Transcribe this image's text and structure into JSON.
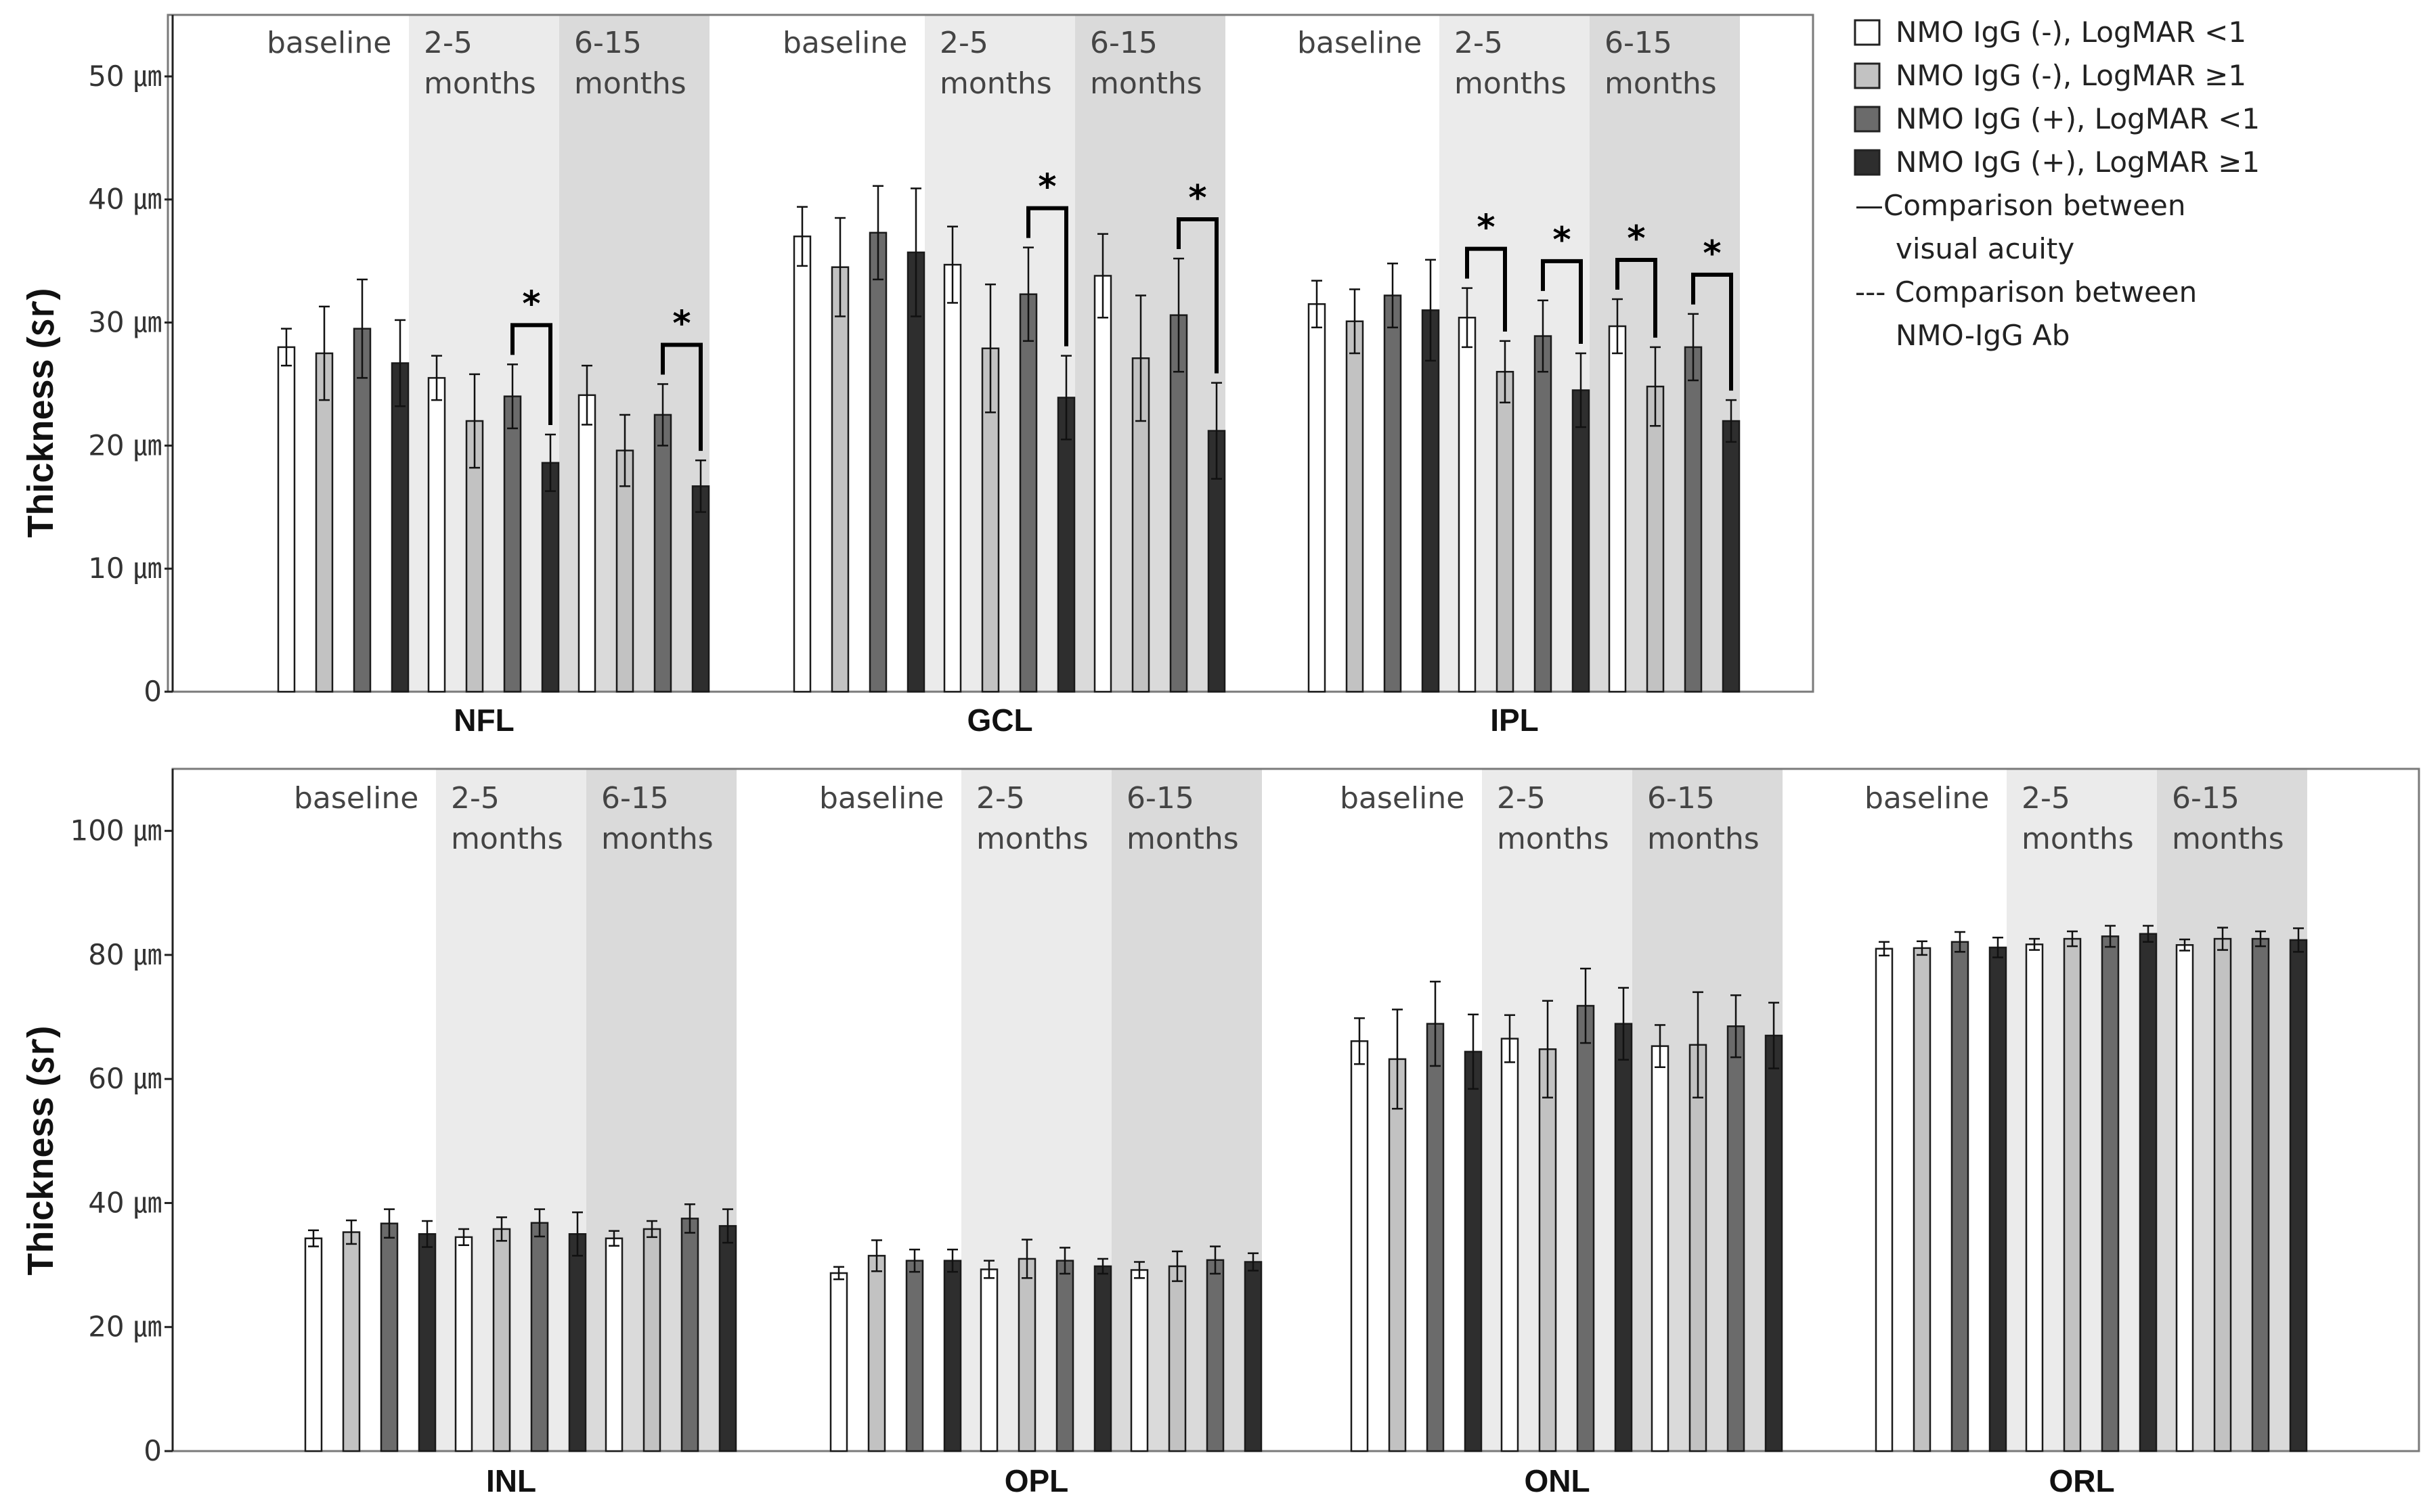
{
  "colors": {
    "series": [
      "#ffffff",
      "#c2c2c2",
      "#6b6b6b",
      "#2e2e2e"
    ],
    "period_bg": [
      "#ffffff",
      "#ebebeb",
      "#dadada"
    ],
    "frame": "#7a7a7a"
  },
  "legend": {
    "entries": [
      "NMO IgG (-), LogMAR <1",
      "NMO IgG (-), LogMAR ≥1",
      "NMO IgG (+), LogMAR <1",
      "NMO IgG (+), LogMAR ≥1"
    ],
    "solid_line": [
      "—Comparison between",
      "visual acuity"
    ],
    "dashed_line": [
      "--- Comparison between",
      "NMO-IgG Ab"
    ]
  },
  "chart_data": [
    {
      "type": "bar",
      "ylabel": "Thickness (㏛)",
      "ylim": [
        0,
        55
      ],
      "yticks": [
        0,
        10,
        20,
        30,
        40,
        50
      ],
      "ytick_labels": [
        "0",
        "10 ㎛",
        "20 ㎛",
        "30 ㎛",
        "40 ㎛",
        "50 ㎛"
      ],
      "periods": [
        "baseline",
        "2-5 months",
        "6-15 months"
      ],
      "series": [
        "NMO IgG (-), LogMAR <1",
        "NMO IgG (-), LogMAR ≥1",
        "NMO IgG (+), LogMAR <1",
        "NMO IgG (+), LogMAR ≥1"
      ],
      "groups": [
        {
          "label": "NFL",
          "periods": [
            {
              "name": "baseline",
              "values": [
                28.0,
                27.5,
                29.5,
                26.7
              ],
              "errors": [
                1.5,
                3.8,
                4.0,
                3.5
              ]
            },
            {
              "name": "2-5 months",
              "values": [
                25.5,
                22.0,
                24.0,
                18.6
              ],
              "errors": [
                1.8,
                3.8,
                2.6,
                2.3
              ]
            },
            {
              "name": "6-15 months",
              "values": [
                24.1,
                19.6,
                22.5,
                16.7
              ],
              "errors": [
                2.4,
                2.9,
                2.5,
                2.1
              ]
            }
          ],
          "significance": [
            {
              "period": "2-5 months",
              "from": 2,
              "to": 3,
              "style": "solid",
              "label": "*"
            },
            {
              "period": "6-15 months",
              "from": 2,
              "to": 3,
              "style": "solid",
              "label": "*"
            }
          ]
        },
        {
          "label": "GCL",
          "periods": [
            {
              "name": "baseline",
              "values": [
                37.0,
                34.5,
                37.3,
                35.7
              ],
              "errors": [
                2.4,
                4.0,
                3.8,
                5.2
              ]
            },
            {
              "name": "2-5 months",
              "values": [
                34.7,
                27.9,
                32.3,
                23.9
              ],
              "errors": [
                3.1,
                5.2,
                3.8,
                3.4
              ]
            },
            {
              "name": "6-15 months",
              "values": [
                33.8,
                27.1,
                30.6,
                21.2
              ],
              "errors": [
                3.4,
                5.1,
                4.6,
                3.9
              ]
            }
          ],
          "significance": [
            {
              "period": "2-5 months",
              "from": 2,
              "to": 3,
              "style": "solid",
              "label": "*"
            },
            {
              "period": "6-15 months",
              "from": 2,
              "to": 3,
              "style": "solid",
              "label": "*"
            }
          ]
        },
        {
          "label": "IPL",
          "periods": [
            {
              "name": "baseline",
              "values": [
                31.5,
                30.1,
                32.2,
                31.0
              ],
              "errors": [
                1.9,
                2.6,
                2.6,
                4.1
              ]
            },
            {
              "name": "2-5 months",
              "values": [
                30.4,
                26.0,
                28.9,
                24.5
              ],
              "errors": [
                2.4,
                2.5,
                2.9,
                3.0
              ]
            },
            {
              "name": "6-15 months",
              "values": [
                29.7,
                24.8,
                28.0,
                22.0
              ],
              "errors": [
                2.2,
                3.2,
                2.7,
                1.7
              ]
            }
          ],
          "significance": [
            {
              "period": "2-5 months",
              "from": 0,
              "to": 1,
              "style": "solid",
              "label": "*"
            },
            {
              "period": "2-5 months",
              "from": 2,
              "to": 3,
              "style": "solid",
              "label": "*"
            },
            {
              "period": "6-15 months",
              "from": 0,
              "to": 1,
              "style": "solid",
              "label": "*"
            },
            {
              "period": "6-15 months",
              "from": 2,
              "to": 3,
              "style": "solid",
              "label": "*"
            }
          ]
        }
      ]
    },
    {
      "type": "bar",
      "ylabel": "Thickness (㏛)",
      "ylim": [
        0,
        110
      ],
      "yticks": [
        0,
        20,
        40,
        60,
        80,
        100
      ],
      "ytick_labels": [
        "0",
        "20 ㎛",
        "40 ㎛",
        "60 ㎛",
        "80 ㎛",
        "100 ㎛"
      ],
      "periods": [
        "baseline",
        "2-5 months",
        "6-15 months"
      ],
      "series": [
        "NMO IgG (-), LogMAR <1",
        "NMO IgG (-), LogMAR ≥1",
        "NMO IgG (+), LogMAR <1",
        "NMO IgG (+), LogMAR ≥1"
      ],
      "groups": [
        {
          "label": "INL",
          "periods": [
            {
              "name": "baseline",
              "values": [
                34.3,
                35.3,
                36.7,
                35.0
              ],
              "errors": [
                1.3,
                1.9,
                2.3,
                2.1
              ]
            },
            {
              "name": "2-5 months",
              "values": [
                34.5,
                35.8,
                36.8,
                35.0
              ],
              "errors": [
                1.3,
                1.9,
                2.2,
                3.5
              ]
            },
            {
              "name": "6-15 months",
              "values": [
                34.3,
                35.8,
                37.5,
                36.3
              ],
              "errors": [
                1.2,
                1.3,
                2.3,
                2.7
              ]
            }
          ],
          "significance": []
        },
        {
          "label": "OPL",
          "periods": [
            {
              "name": "baseline",
              "values": [
                28.7,
                31.5,
                30.7,
                30.7
              ],
              "errors": [
                1.0,
                2.5,
                1.8,
                1.8
              ]
            },
            {
              "name": "2-5 months",
              "values": [
                29.3,
                31.0,
                30.7,
                29.8
              ],
              "errors": [
                1.4,
                3.1,
                2.1,
                1.2
              ]
            },
            {
              "name": "6-15 months",
              "values": [
                29.2,
                29.8,
                30.8,
                30.5
              ],
              "errors": [
                1.3,
                2.4,
                2.2,
                1.4
              ]
            }
          ],
          "significance": []
        },
        {
          "label": "ONL",
          "periods": [
            {
              "name": "baseline",
              "values": [
                66.1,
                63.2,
                68.9,
                64.4
              ],
              "errors": [
                3.7,
                8.0,
                6.8,
                6.0
              ]
            },
            {
              "name": "2-5 months",
              "values": [
                66.5,
                64.8,
                71.8,
                68.9
              ],
              "errors": [
                3.8,
                7.8,
                6.0,
                5.8
              ]
            },
            {
              "name": "6-15 months",
              "values": [
                65.3,
                65.5,
                68.5,
                67.0
              ],
              "errors": [
                3.4,
                8.5,
                5.0,
                5.3
              ]
            }
          ],
          "significance": []
        },
        {
          "label": "ORL",
          "periods": [
            {
              "name": "baseline",
              "values": [
                81.0,
                81.1,
                82.1,
                81.2
              ],
              "errors": [
                1.1,
                1.1,
                1.6,
                1.6
              ]
            },
            {
              "name": "2-5 months",
              "values": [
                81.7,
                82.6,
                83.0,
                83.4
              ],
              "errors": [
                0.9,
                1.2,
                1.7,
                1.3
              ]
            },
            {
              "name": "6-15 months",
              "values": [
                81.6,
                82.6,
                82.6,
                82.4
              ],
              "errors": [
                0.9,
                1.8,
                1.2,
                1.9
              ]
            }
          ],
          "significance": []
        }
      ]
    }
  ]
}
